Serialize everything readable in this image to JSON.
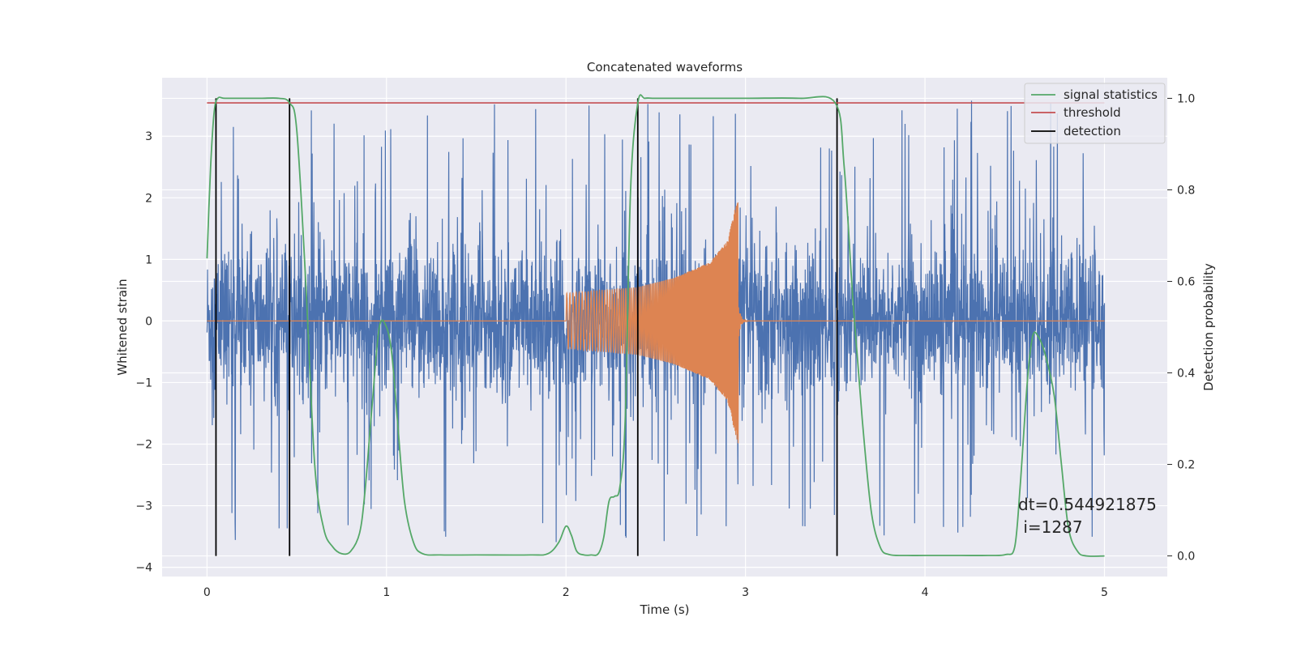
{
  "chart_data": {
    "type": "line",
    "title": "Concatenated waveforms",
    "xlabel": "Time (s)",
    "ylabel": "Whitened strain",
    "y2label": "Detection probability",
    "xlim": [
      -0.25,
      5.35
    ],
    "ylim": [
      -4.15,
      3.95
    ],
    "y2lim": [
      -0.045,
      1.045
    ],
    "xticks": [
      0,
      1,
      2,
      3,
      4,
      5
    ],
    "yticks": [
      -4,
      -3,
      -2,
      -1,
      0,
      1,
      2,
      3
    ],
    "y2ticks": [
      0.0,
      0.2,
      0.4,
      0.6,
      0.8,
      1.0
    ],
    "xtick_labels": [
      "0",
      "1",
      "2",
      "3",
      "4",
      "5"
    ],
    "ytick_labels": [
      "−4",
      "−3",
      "−2",
      "−1",
      "0",
      "1",
      "2",
      "3"
    ],
    "y2tick_labels": [
      "0.0",
      "0.2",
      "0.4",
      "0.6",
      "0.8",
      "1.0"
    ],
    "grid": true,
    "legend_position": "top-right",
    "series": [
      {
        "name": "",
        "axis": "left",
        "color": "#4c72b0",
        "kind": "noise",
        "x_range": [
          0,
          5
        ],
        "typical_amplitude": 0.8,
        "peak_amplitude": 3.6
      },
      {
        "name": "",
        "axis": "left",
        "color": "#dd8452",
        "kind": "chirp",
        "x_range": [
          0,
          5
        ],
        "chirp_start": 2.0,
        "chirp_end": 2.96,
        "envelope_x": [
          2.0,
          2.2,
          2.4,
          2.6,
          2.8,
          2.9,
          2.94,
          2.96
        ],
        "envelope_y": [
          0.45,
          0.5,
          0.55,
          0.7,
          0.95,
          1.3,
          1.8,
          2.0
        ]
      },
      {
        "name": "signal statistics",
        "axis": "right",
        "color": "#55a868",
        "x": [
          0.0,
          0.02,
          0.04,
          0.06,
          0.1,
          0.2,
          0.3,
          0.4,
          0.46,
          0.5,
          0.55,
          0.6,
          0.65,
          0.7,
          0.75,
          0.8,
          0.85,
          0.88,
          0.92,
          0.96,
          1.0,
          1.03,
          1.06,
          1.1,
          1.15,
          1.2,
          1.3,
          1.5,
          1.8,
          1.9,
          1.96,
          2.0,
          2.03,
          2.06,
          2.1,
          2.14,
          2.18,
          2.21,
          2.24,
          2.27,
          2.3,
          2.33,
          2.36,
          2.4,
          2.44,
          2.5,
          2.7,
          3.0,
          3.3,
          3.5,
          3.55,
          3.6,
          3.65,
          3.7,
          3.75,
          3.8,
          3.9,
          4.0,
          4.2,
          4.35,
          4.45,
          4.5,
          4.53,
          4.57,
          4.6,
          4.63,
          4.67,
          4.72,
          4.76,
          4.8,
          4.85,
          4.9,
          5.0
        ],
        "values": [
          0.65,
          0.85,
          0.97,
          1.0,
          1.0,
          1.0,
          1.0,
          1.0,
          0.99,
          0.93,
          0.6,
          0.2,
          0.06,
          0.02,
          0.005,
          0.01,
          0.05,
          0.14,
          0.33,
          0.5,
          0.5,
          0.44,
          0.3,
          0.12,
          0.03,
          0.005,
          0.002,
          0.002,
          0.002,
          0.005,
          0.03,
          0.065,
          0.045,
          0.01,
          0.002,
          0.002,
          0.005,
          0.04,
          0.12,
          0.13,
          0.15,
          0.3,
          0.8,
          0.99,
          1.0,
          1.0,
          1.0,
          1.0,
          1.0,
          0.99,
          0.85,
          0.55,
          0.3,
          0.1,
          0.02,
          0.003,
          0.001,
          0.001,
          0.001,
          0.001,
          0.003,
          0.02,
          0.15,
          0.38,
          0.48,
          0.48,
          0.44,
          0.35,
          0.2,
          0.06,
          0.01,
          0.0,
          0.0
        ]
      },
      {
        "name": "threshold",
        "axis": "right",
        "color": "#c44e52",
        "x": [
          0,
          5
        ],
        "values": [
          0.99,
          0.99
        ]
      },
      {
        "name": "detection",
        "axis": "right",
        "color": "#000000",
        "x": [
          0.05,
          0.46,
          2.4,
          3.51
        ],
        "values": [
          1.0,
          1.0,
          1.0,
          1.0
        ]
      }
    ],
    "annotation": {
      "line1": "dt=0.544921875",
      "line2": " i=1287"
    }
  }
}
